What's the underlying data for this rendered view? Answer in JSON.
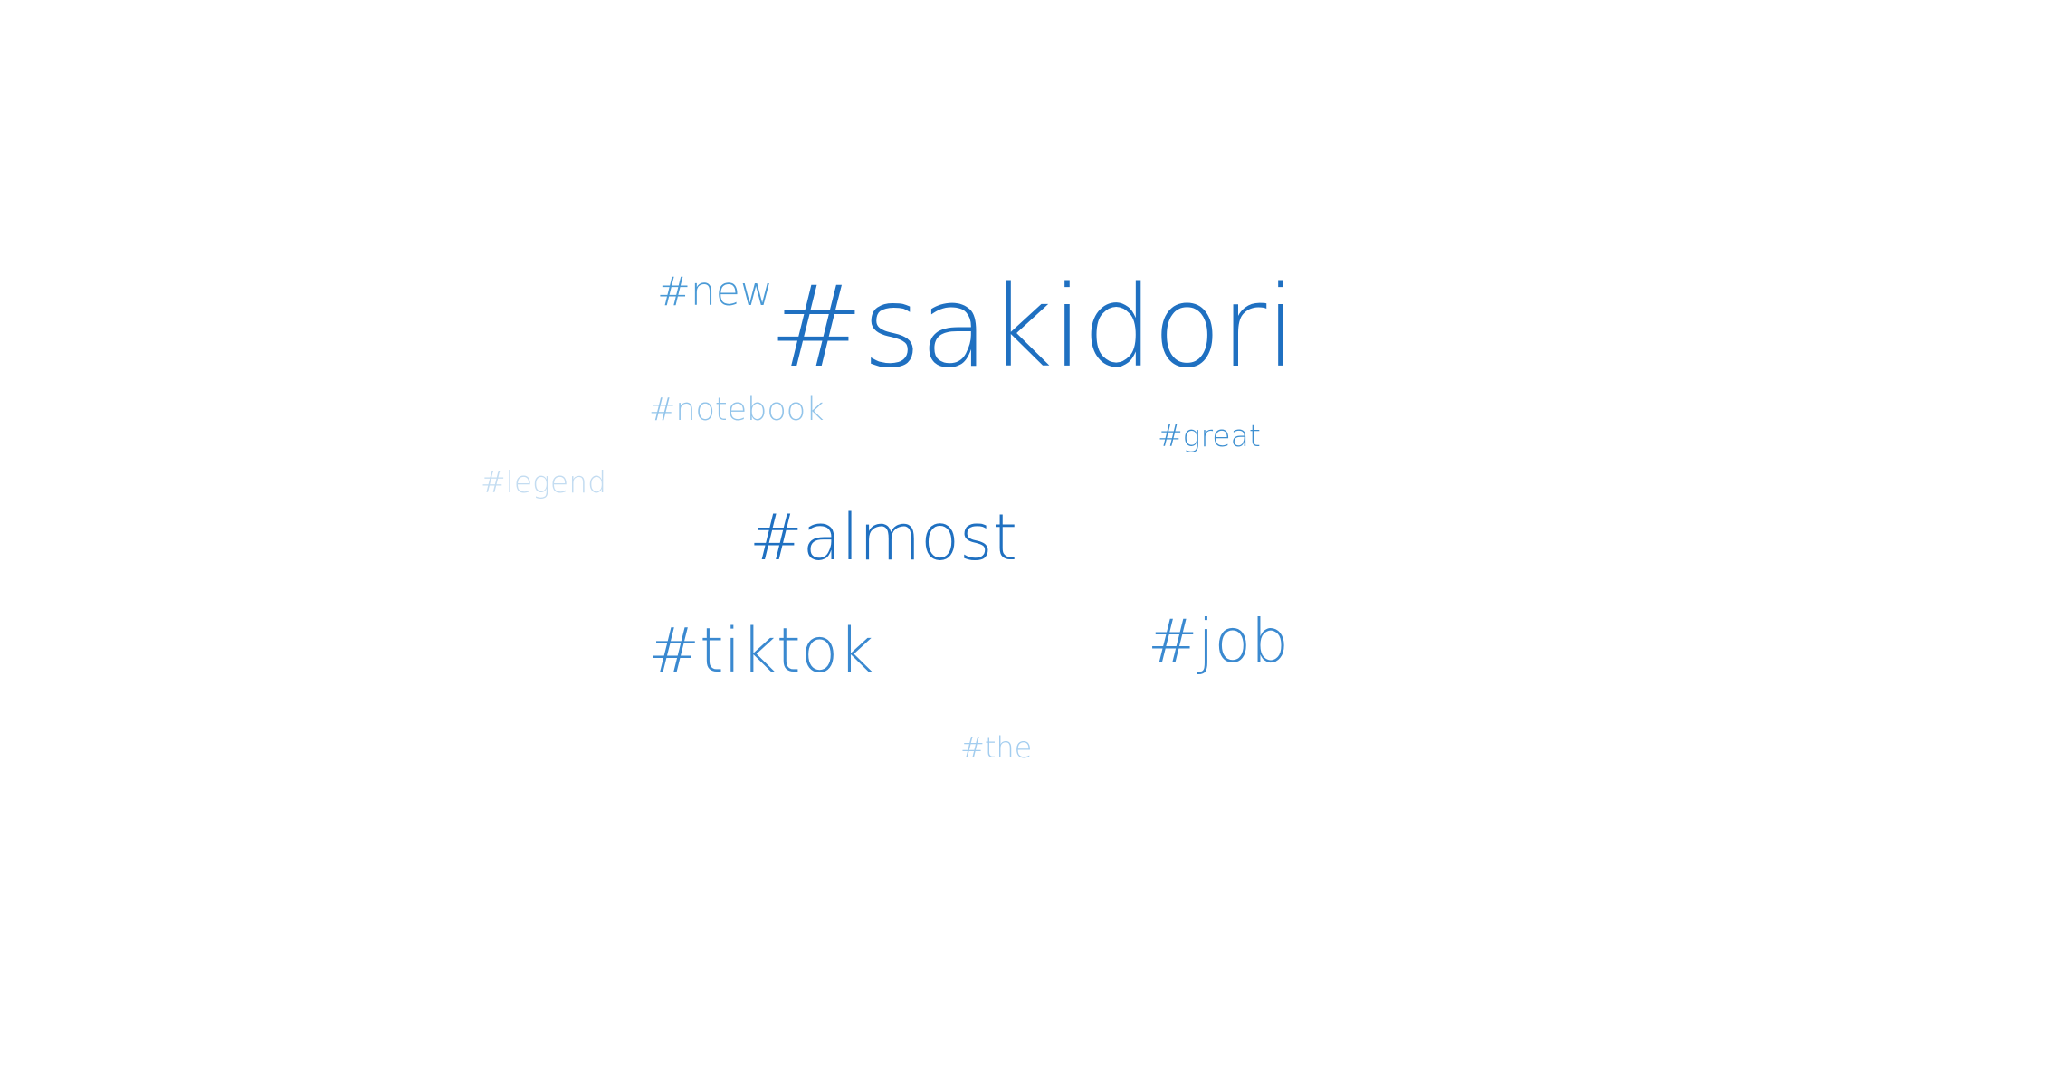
{
  "word_cloud": {
    "tags": [
      {
        "id": "sakidori",
        "text": "#sakidori",
        "color": "#1f70c1"
      },
      {
        "id": "new",
        "text": "#new",
        "color": "#4a9ad6"
      },
      {
        "id": "notebook",
        "text": "#notebook",
        "color": "#92c4ea"
      },
      {
        "id": "great",
        "text": "#great",
        "color": "#3d8fd1"
      },
      {
        "id": "legend",
        "text": "#legend",
        "color": "#c3dcf1"
      },
      {
        "id": "almost",
        "text": "#almost",
        "color": "#1f70c1"
      },
      {
        "id": "tiktok",
        "text": "#tiktok",
        "color": "#3a89d0"
      },
      {
        "id": "job",
        "text": "#job",
        "color": "#3a89d0"
      },
      {
        "id": "the",
        "text": "#the",
        "color": "#a3cdef"
      }
    ]
  }
}
